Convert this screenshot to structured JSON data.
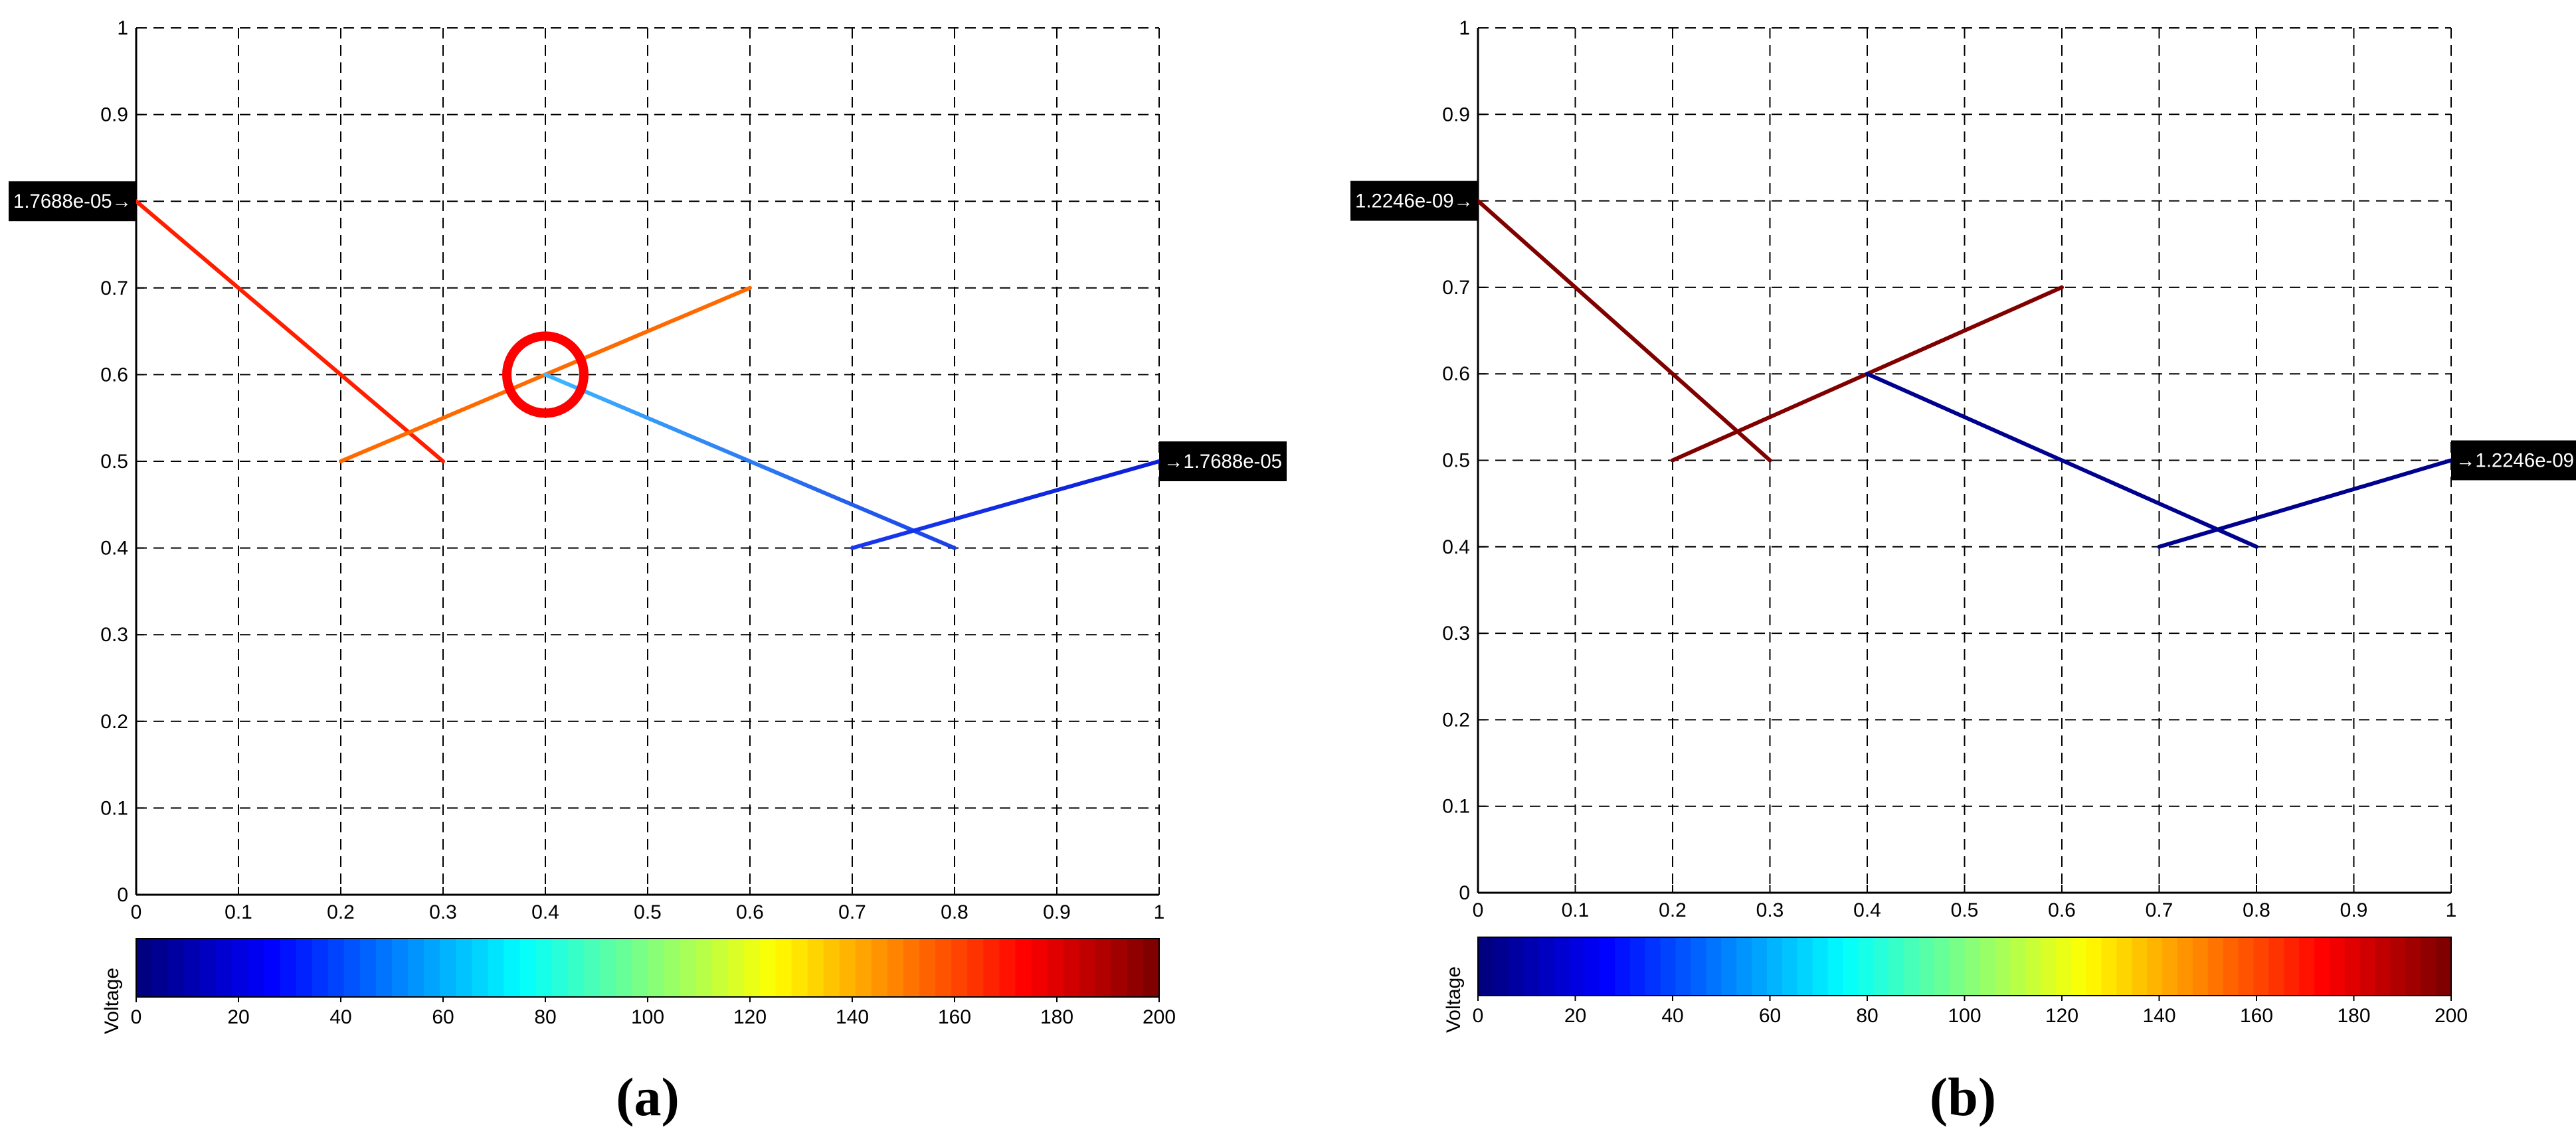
{
  "chart_data": [
    {
      "type": "line",
      "panel": "a",
      "caption": "(a)",
      "xlim": [
        0,
        1
      ],
      "ylim": [
        0,
        1
      ],
      "xticks": [
        "0",
        "0.1",
        "0.2",
        "0.3",
        "0.4",
        "0.5",
        "0.6",
        "0.7",
        "0.8",
        "0.9",
        "1"
      ],
      "yticks": [
        "0",
        "0.1",
        "0.2",
        "0.3",
        "0.4",
        "0.5",
        "0.6",
        "0.7",
        "0.8",
        "0.9",
        "1"
      ],
      "grid": true,
      "series": [
        {
          "x": [
            0,
            0.3
          ],
          "y": [
            0.8,
            0.5
          ],
          "color": "#ff1e00"
        },
        {
          "x": [
            0.2,
            0.6
          ],
          "y": [
            0.5,
            0.7
          ],
          "color": "#ff6a00"
        },
        {
          "x": [
            0.4,
            0.8
          ],
          "y": [
            0.6,
            0.4
          ],
          "color": "#3fb8ff",
          "color_end": "#1a40e8"
        },
        {
          "x": [
            0.7,
            1.0
          ],
          "y": [
            0.4,
            0.5
          ],
          "color": "#1838ee",
          "color_end": "#0a1ed8"
        }
      ],
      "annotations": [
        {
          "text": "1.7688e-05→",
          "x": 0,
          "y": 0.8,
          "side": "left"
        },
        {
          "text": "→1.7688e-05",
          "x": 1,
          "y": 0.5,
          "side": "right"
        }
      ],
      "marker_circle": {
        "x": 0.4,
        "y": 0.6,
        "color": "#ff0000"
      },
      "colorbar": {
        "title": "Voltage",
        "range": [
          0,
          200
        ],
        "ticks": [
          "0",
          "20",
          "40",
          "60",
          "80",
          "100",
          "120",
          "140",
          "160",
          "180",
          "200"
        ]
      }
    },
    {
      "type": "line",
      "panel": "b",
      "caption": "(b)",
      "xlim": [
        0,
        1
      ],
      "ylim": [
        0,
        1
      ],
      "xticks": [
        "0",
        "0.1",
        "0.2",
        "0.3",
        "0.4",
        "0.5",
        "0.6",
        "0.7",
        "0.8",
        "0.9",
        "1"
      ],
      "yticks": [
        "0",
        "0.1",
        "0.2",
        "0.3",
        "0.4",
        "0.5",
        "0.6",
        "0.7",
        "0.8",
        "0.9",
        "1"
      ],
      "grid": true,
      "series": [
        {
          "x": [
            0,
            0.3
          ],
          "y": [
            0.8,
            0.5
          ],
          "color": "#800000"
        },
        {
          "x": [
            0.2,
            0.6
          ],
          "y": [
            0.5,
            0.7
          ],
          "color": "#800000"
        },
        {
          "x": [
            0.4,
            0.8
          ],
          "y": [
            0.6,
            0.4
          ],
          "color": "#00008f"
        },
        {
          "x": [
            0.7,
            1.0
          ],
          "y": [
            0.4,
            0.5
          ],
          "color": "#00008f"
        }
      ],
      "annotations": [
        {
          "text": "1.2246e-09→",
          "x": 0,
          "y": 0.8,
          "side": "left"
        },
        {
          "text": "→1.2246e-09",
          "x": 1,
          "y": 0.5,
          "side": "right"
        }
      ],
      "colorbar": {
        "title": "Voltage",
        "range": [
          0,
          200
        ],
        "ticks": [
          "0",
          "20",
          "40",
          "60",
          "80",
          "100",
          "120",
          "140",
          "160",
          "180",
          "200"
        ]
      }
    }
  ]
}
